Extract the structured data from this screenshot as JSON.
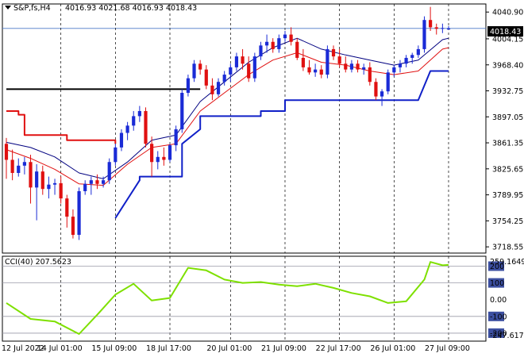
{
  "header": {
    "symbol_label": "S&P,fs,H4",
    "ohlc_label": "4016.93 4021.68 4016.93 4018.43",
    "current_price_label": "4018.43"
  },
  "indicator": {
    "label": "CCI(40) 207.5623",
    "max_label": "259.1649",
    "min_label": "-247.617"
  },
  "colors": {
    "bull": "#1a2bd6",
    "bear": "#e01010",
    "fast_ma": "#e01010",
    "slow_ma": "#000080",
    "stop_low": "#1020c8",
    "stop_high": "#e01010",
    "resistance": "#000000",
    "cci": "#7ee000",
    "grid": "#000000",
    "price_marker_bg": "#000000"
  },
  "chart_data": [
    {
      "type": "candlestick",
      "ylim": [
        3710,
        4052
      ],
      "y_ticks": [
        "4040.90",
        "4004.15",
        "3968.40",
        "3932.75",
        "3897.05",
        "3861.35",
        "3825.65",
        "3789.95",
        "3754.25",
        "3718.55"
      ],
      "x_ticks": [
        "12 Jul 2022",
        "14 Jul 01:00",
        "15 Jul 09:00",
        "18 Jul 17:00",
        "20 Jul 01:00",
        "21 Jul 09:00",
        "22 Jul 17:00",
        "26 Jul 01:00",
        "27 Jul 09:00"
      ],
      "candles": [
        [
          3860,
          3868,
          3812,
          3838
        ],
        [
          3838,
          3852,
          3810,
          3820
        ],
        [
          3820,
          3840,
          3815,
          3830
        ],
        [
          3830,
          3842,
          3818,
          3835
        ],
        [
          3835,
          3845,
          3778,
          3800
        ],
        [
          3800,
          3832,
          3755,
          3822
        ],
        [
          3822,
          3830,
          3790,
          3798
        ],
        [
          3798,
          3815,
          3785,
          3804
        ],
        [
          3804,
          3812,
          3790,
          3806
        ],
        [
          3806,
          3815,
          3778,
          3785
        ],
        [
          3785,
          3790,
          3745,
          3760
        ],
        [
          3760,
          3770,
          3730,
          3735
        ],
        [
          3735,
          3800,
          3728,
          3795
        ],
        [
          3795,
          3810,
          3790,
          3805
        ],
        [
          3805,
          3815,
          3790,
          3810
        ],
        [
          3810,
          3818,
          3798,
          3805
        ],
        [
          3805,
          3815,
          3800,
          3810
        ],
        [
          3810,
          3840,
          3805,
          3835
        ],
        [
          3835,
          3860,
          3830,
          3855
        ],
        [
          3855,
          3880,
          3850,
          3875
        ],
        [
          3875,
          3890,
          3865,
          3885
        ],
        [
          3885,
          3905,
          3878,
          3898
        ],
        [
          3898,
          3912,
          3890,
          3905
        ],
        [
          3905,
          3910,
          3855,
          3860
        ],
        [
          3860,
          3870,
          3815,
          3835
        ],
        [
          3835,
          3850,
          3825,
          3842
        ],
        [
          3842,
          3855,
          3830,
          3838
        ],
        [
          3838,
          3860,
          3835,
          3858
        ],
        [
          3858,
          3885,
          3850,
          3880
        ],
        [
          3880,
          3935,
          3875,
          3930
        ],
        [
          3930,
          3955,
          3925,
          3950
        ],
        [
          3950,
          3975,
          3945,
          3970
        ],
        [
          3970,
          3975,
          3955,
          3962
        ],
        [
          3962,
          3968,
          3935,
          3940
        ],
        [
          3940,
          3950,
          3920,
          3928
        ],
        [
          3928,
          3950,
          3925,
          3945
        ],
        [
          3945,
          3960,
          3940,
          3955
        ],
        [
          3955,
          3970,
          3945,
          3965
        ],
        [
          3965,
          3985,
          3960,
          3980
        ],
        [
          3980,
          3990,
          3962,
          3970
        ],
        [
          3970,
          3980,
          3945,
          3950
        ],
        [
          3950,
          3985,
          3945,
          3980
        ],
        [
          3980,
          4000,
          3975,
          3995
        ],
        [
          3995,
          4010,
          3985,
          4000
        ],
        [
          4000,
          4005,
          3985,
          3990
        ],
        [
          3990,
          4010,
          3985,
          4005
        ],
        [
          4005,
          4015,
          4000,
          4010
        ],
        [
          4010,
          4020,
          3995,
          4000
        ],
        [
          4000,
          4005,
          3975,
          3978
        ],
        [
          3978,
          3990,
          3960,
          3965
        ],
        [
          3965,
          3975,
          3955,
          3958
        ],
        [
          3958,
          3970,
          3952,
          3962
        ],
        [
          3962,
          3968,
          3950,
          3955
        ],
        [
          3955,
          3995,
          3950,
          3990
        ],
        [
          3990,
          3995,
          3975,
          3980
        ],
        [
          3980,
          3990,
          3965,
          3970
        ],
        [
          3970,
          3980,
          3958,
          3962
        ],
        [
          3962,
          3975,
          3958,
          3970
        ],
        [
          3970,
          3975,
          3958,
          3962
        ],
        [
          3962,
          3970,
          3955,
          3965
        ],
        [
          3965,
          3972,
          3940,
          3945
        ],
        [
          3945,
          3950,
          3920,
          3925
        ],
        [
          3925,
          3935,
          3912,
          3932
        ],
        [
          3932,
          3962,
          3928,
          3958
        ],
        [
          3958,
          3968,
          3952,
          3965
        ],
        [
          3965,
          3975,
          3958,
          3970
        ],
        [
          3970,
          3982,
          3965,
          3978
        ],
        [
          3978,
          3985,
          3970,
          3982
        ],
        [
          3982,
          3995,
          3978,
          3990
        ],
        [
          3990,
          4035,
          3985,
          4030
        ],
        [
          4030,
          4048,
          4015,
          4020
        ],
        [
          4020,
          4025,
          4010,
          4018
        ],
        [
          4018,
          4025,
          4012,
          4019
        ],
        [
          4016.93,
          4021.68,
          4016.93,
          4018.43
        ]
      ],
      "fast_ma": [
        [
          0,
          3852
        ],
        [
          4,
          3840
        ],
        [
          8,
          3825
        ],
        [
          12,
          3805
        ],
        [
          16,
          3803
        ],
        [
          20,
          3832
        ],
        [
          24,
          3855
        ],
        [
          28,
          3860
        ],
        [
          32,
          3905
        ],
        [
          36,
          3930
        ],
        [
          40,
          3955
        ],
        [
          44,
          3975
        ],
        [
          48,
          3985
        ],
        [
          52,
          3972
        ],
        [
          56,
          3968
        ],
        [
          60,
          3960
        ],
        [
          64,
          3955
        ],
        [
          68,
          3960
        ],
        [
          72,
          3990
        ],
        [
          73,
          3992
        ]
      ],
      "slow_ma": [
        [
          0,
          3862
        ],
        [
          4,
          3855
        ],
        [
          8,
          3842
        ],
        [
          12,
          3820
        ],
        [
          16,
          3812
        ],
        [
          20,
          3835
        ],
        [
          24,
          3865
        ],
        [
          28,
          3872
        ],
        [
          32,
          3918
        ],
        [
          36,
          3945
        ],
        [
          40,
          3972
        ],
        [
          44,
          3992
        ],
        [
          48,
          4005
        ],
        [
          52,
          3990
        ],
        [
          56,
          3982
        ],
        [
          60,
          3975
        ],
        [
          64,
          3968
        ],
        [
          68,
          3975
        ],
        [
          72,
          4003
        ],
        [
          73,
          4005
        ]
      ],
      "stop_high": [
        [
          0,
          3905
        ],
        [
          2,
          3905
        ],
        [
          2,
          3900
        ],
        [
          3,
          3900
        ],
        [
          3,
          3872
        ],
        [
          10,
          3872
        ],
        [
          10,
          3865
        ],
        [
          18,
          3865
        ],
        [
          18,
          3860
        ]
      ],
      "stop_low": [
        [
          18,
          3758
        ],
        [
          22,
          3810
        ],
        [
          22,
          3815
        ],
        [
          29,
          3815
        ],
        [
          29,
          3860
        ],
        [
          32,
          3880
        ],
        [
          32,
          3898
        ],
        [
          42,
          3898
        ],
        [
          42,
          3905
        ],
        [
          46,
          3905
        ],
        [
          46,
          3920
        ],
        [
          68,
          3920
        ],
        [
          70,
          3960
        ],
        [
          73,
          3960
        ]
      ],
      "resistance": [
        [
          0,
          3935
        ],
        [
          30,
          3935
        ]
      ]
    },
    {
      "type": "line",
      "name": "CCI(40)",
      "ylim": [
        -247.617,
        259.1649
      ],
      "y_ticks": [
        "200",
        "100",
        "0.00",
        "-100",
        "-200"
      ],
      "levels": [
        200,
        100,
        -100,
        -200
      ],
      "x": [
        0,
        4,
        8,
        12,
        15,
        18,
        21,
        24,
        27,
        30,
        33,
        36,
        39,
        42,
        45,
        48,
        51,
        54,
        57,
        60,
        63,
        66,
        69,
        70,
        72,
        73
      ],
      "y": [
        -20,
        -115,
        -130,
        -205,
        -90,
        30,
        95,
        -5,
        10,
        190,
        175,
        120,
        100,
        105,
        90,
        80,
        95,
        70,
        40,
        20,
        -20,
        -10,
        120,
        225,
        205,
        207.56
      ]
    }
  ]
}
